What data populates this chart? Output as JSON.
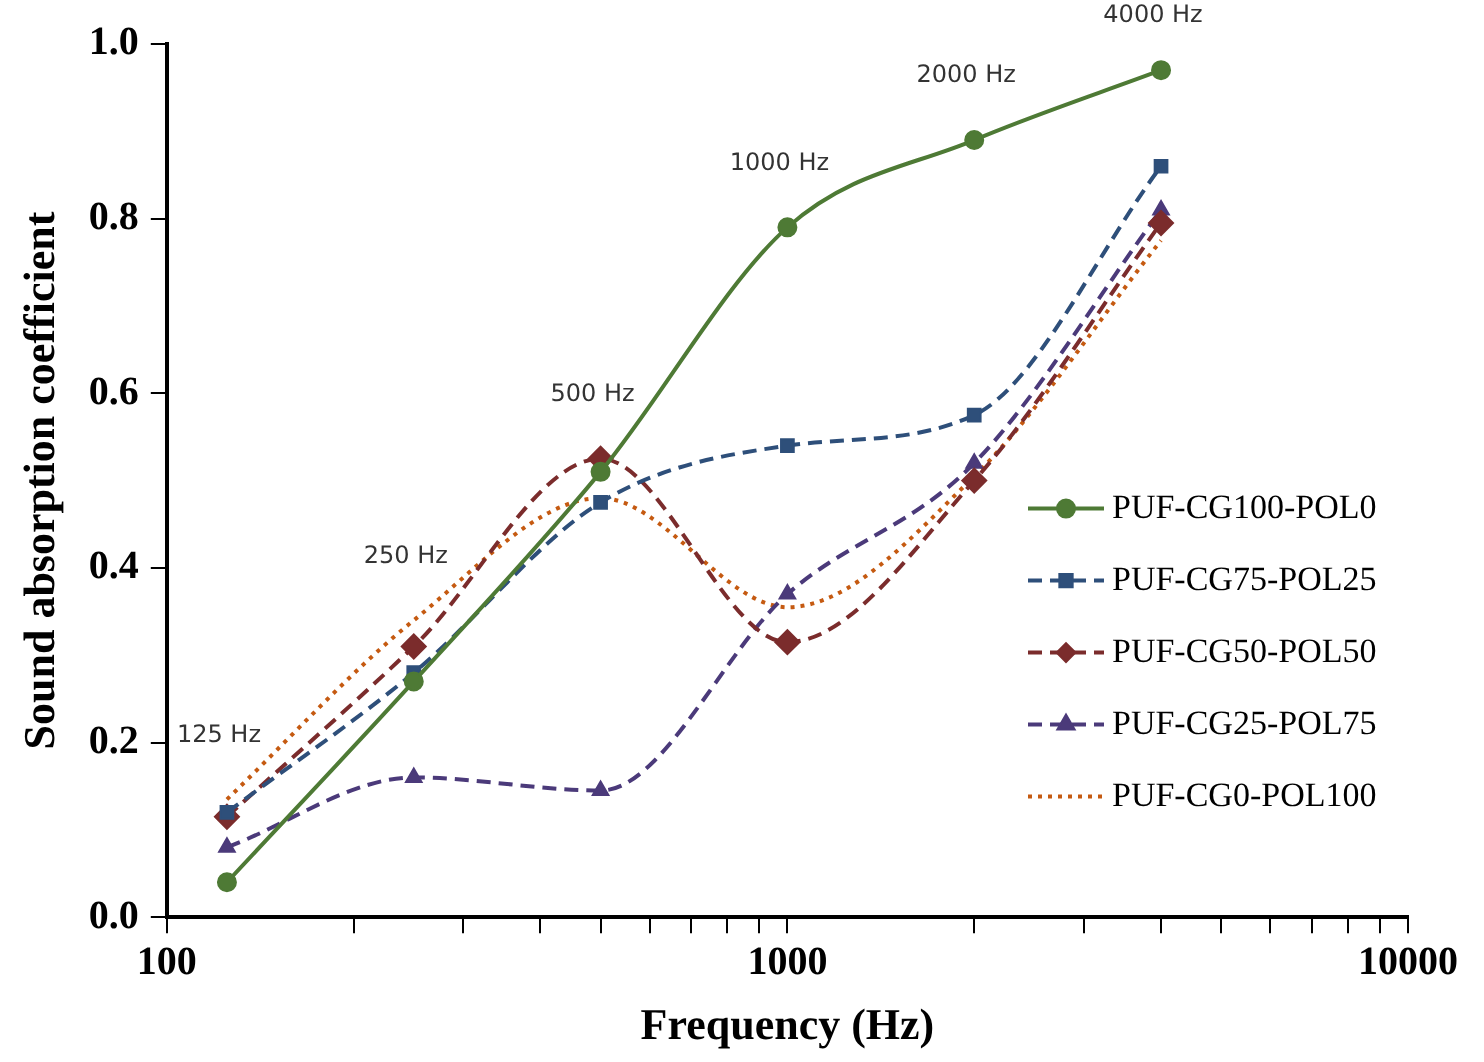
{
  "chart_data": {
    "type": "line",
    "xlabel": "Frequency (Hz)",
    "ylabel": "Sound absorption coefficient",
    "x": [
      125,
      250,
      500,
      1000,
      2000,
      4000
    ],
    "log": "x",
    "xlim": [
      100,
      10000
    ],
    "xticks": [
      100,
      {
        "value": 200,
        "label": null
      },
      {
        "value": 300,
        "label": null
      },
      {
        "value": 400,
        "label": null
      },
      {
        "value": 500,
        "label": null
      },
      {
        "value": 600,
        "label": null
      },
      {
        "value": 700,
        "label": null
      },
      {
        "value": 800,
        "label": null
      },
      {
        "value": 900,
        "label": null
      },
      1000,
      {
        "value": 2000,
        "label": null
      },
      {
        "value": 3000,
        "label": null
      },
      {
        "value": 4000,
        "label": null
      },
      {
        "value": 5000,
        "label": null
      },
      {
        "value": 6000,
        "label": null
      },
      {
        "value": 7000,
        "label": null
      },
      {
        "value": 8000,
        "label": null
      },
      {
        "value": 9000,
        "label": null
      },
      10000
    ],
    "ylim": [
      0,
      1
    ],
    "yticks": [
      {
        "value": 0,
        "label": "0.0"
      },
      {
        "value": 0.2,
        "label": "0.2"
      },
      {
        "value": 0.4,
        "label": "0.4"
      },
      {
        "value": 0.6,
        "label": "0.6"
      },
      {
        "value": 0.8,
        "label": "0.8"
      },
      {
        "value": 1,
        "label": "1.0"
      }
    ],
    "grid": false,
    "legend": "right",
    "series": [
      {
        "name": "PUF-CG100-POL0",
        "color": "#4e7a35",
        "marker": "circle",
        "line_style": "solid",
        "values": [
          0.04,
          0.27,
          0.51,
          0.79,
          0.89,
          0.97
        ]
      },
      {
        "name": "PUF-CG75-POL25",
        "color": "#2e4f7a",
        "marker": "square",
        "line_style": "dashed",
        "values": [
          0.12,
          0.28,
          0.475,
          0.54,
          0.575,
          0.86
        ]
      },
      {
        "name": "PUF-CG50-POL50",
        "color": "#7b2c2c",
        "marker": "diamond",
        "line_style": "dashed",
        "values": [
          0.115,
          0.31,
          0.525,
          0.315,
          0.5,
          0.795
        ]
      },
      {
        "name": "PUF-CG25-POL75",
        "color": "#4b3a7a",
        "marker": "triangle",
        "line_style": "dashed",
        "values": [
          0.08,
          0.16,
          0.145,
          0.37,
          0.52,
          0.81
        ]
      },
      {
        "name": "PUF-CG0-POL100",
        "color": "#c55a11",
        "marker": "none",
        "line_style": "dotted",
        "values": [
          0.135,
          0.34,
          0.48,
          0.355,
          0.505,
          0.775
        ]
      }
    ],
    "annotations": [
      "125 Hz",
      "250 Hz",
      "500 Hz",
      "1000 Hz",
      "2000 Hz",
      "4000 Hz"
    ]
  }
}
